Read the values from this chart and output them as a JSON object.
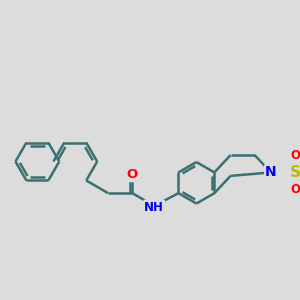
{
  "bg_color": "#dcdcdc",
  "bond_color": "#3a7070",
  "bond_width": 1.8,
  "atom_colors": {
    "O": "#ff0000",
    "N": "#0000ee",
    "S": "#bbbb00",
    "C": "#3a7070"
  },
  "font_size": 8.5,
  "fig_size": [
    3.0,
    3.0
  ],
  "dpi": 100
}
